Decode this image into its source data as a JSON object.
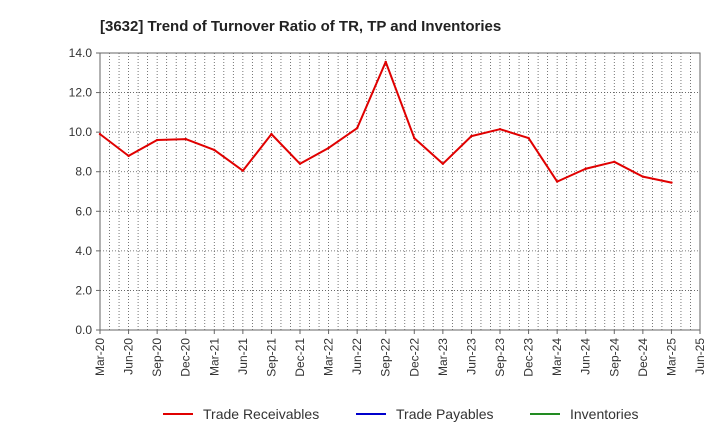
{
  "chart_data": {
    "type": "line",
    "title": "[3632]  Trend of Turnover Ratio of TR, TP and Inventories",
    "xlabel": "",
    "ylabel": "",
    "ylim": [
      0,
      14
    ],
    "y_ticks": [
      "0.0",
      "2.0",
      "4.0",
      "6.0",
      "8.0",
      "10.0",
      "12.0",
      "14.0"
    ],
    "x_ticks": [
      "Mar-20",
      "Jun-20",
      "Sep-20",
      "Dec-20",
      "Mar-21",
      "Jun-21",
      "Sep-21",
      "Dec-21",
      "Mar-22",
      "Jun-22",
      "Sep-22",
      "Dec-22",
      "Mar-23",
      "Jun-23",
      "Sep-23",
      "Dec-23",
      "Mar-24",
      "Jun-24",
      "Sep-24",
      "Dec-24",
      "Mar-25",
      "Jun-25"
    ],
    "x_months": [
      "2020-03",
      "2020-04",
      "2020-05",
      "2020-06",
      "2020-07",
      "2020-08",
      "2020-09",
      "2020-10",
      "2020-11",
      "2020-12",
      "2021-01",
      "2021-02",
      "2021-03",
      "2021-04",
      "2021-05",
      "2021-06",
      "2021-07",
      "2021-08",
      "2021-09",
      "2021-10",
      "2021-11",
      "2021-12",
      "2022-01",
      "2022-02",
      "2022-03",
      "2022-04",
      "2022-05",
      "2022-06",
      "2022-07",
      "2022-08",
      "2022-09",
      "2022-10",
      "2022-11",
      "2022-12",
      "2023-01",
      "2023-02",
      "2023-03",
      "2023-04",
      "2023-05",
      "2023-06",
      "2023-07",
      "2023-08",
      "2023-09",
      "2023-10",
      "2023-11",
      "2023-12",
      "2024-01",
      "2024-02",
      "2024-03",
      "2024-04",
      "2024-05",
      "2024-06",
      "2024-07",
      "2024-08",
      "2024-09",
      "2024-10",
      "2024-11",
      "2024-12",
      "2025-01",
      "2025-02",
      "2025-03",
      "2025-04",
      "2025-05",
      "2025-06"
    ],
    "grid": true,
    "legend_position": "bottom",
    "series": [
      {
        "name": "Trade Receivables",
        "color": "#e00000",
        "points": [
          {
            "x": "2020-03",
            "y": 9.9
          },
          {
            "x": "2020-06",
            "y": 8.8
          },
          {
            "x": "2020-09",
            "y": 9.6
          },
          {
            "x": "2020-12",
            "y": 9.65
          },
          {
            "x": "2021-03",
            "y": 9.1
          },
          {
            "x": "2021-06",
            "y": 8.05
          },
          {
            "x": "2021-09",
            "y": 9.9
          },
          {
            "x": "2021-12",
            "y": 8.4
          },
          {
            "x": "2022-03",
            "y": 9.2
          },
          {
            "x": "2022-06",
            "y": 10.2
          },
          {
            "x": "2022-09",
            "y": 13.55
          },
          {
            "x": "2022-12",
            "y": 9.7
          },
          {
            "x": "2023-03",
            "y": 8.4
          },
          {
            "x": "2023-06",
            "y": 9.8
          },
          {
            "x": "2023-09",
            "y": 10.15
          },
          {
            "x": "2023-12",
            "y": 9.7
          },
          {
            "x": "2024-03",
            "y": 7.5
          },
          {
            "x": "2024-06",
            "y": 8.15
          },
          {
            "x": "2024-09",
            "y": 8.5
          },
          {
            "x": "2024-12",
            "y": 7.75
          },
          {
            "x": "2025-03",
            "y": 7.45
          }
        ]
      },
      {
        "name": "Trade Payables",
        "color": "#0000cc",
        "points": []
      },
      {
        "name": "Inventories",
        "color": "#228b22",
        "points": []
      }
    ]
  }
}
